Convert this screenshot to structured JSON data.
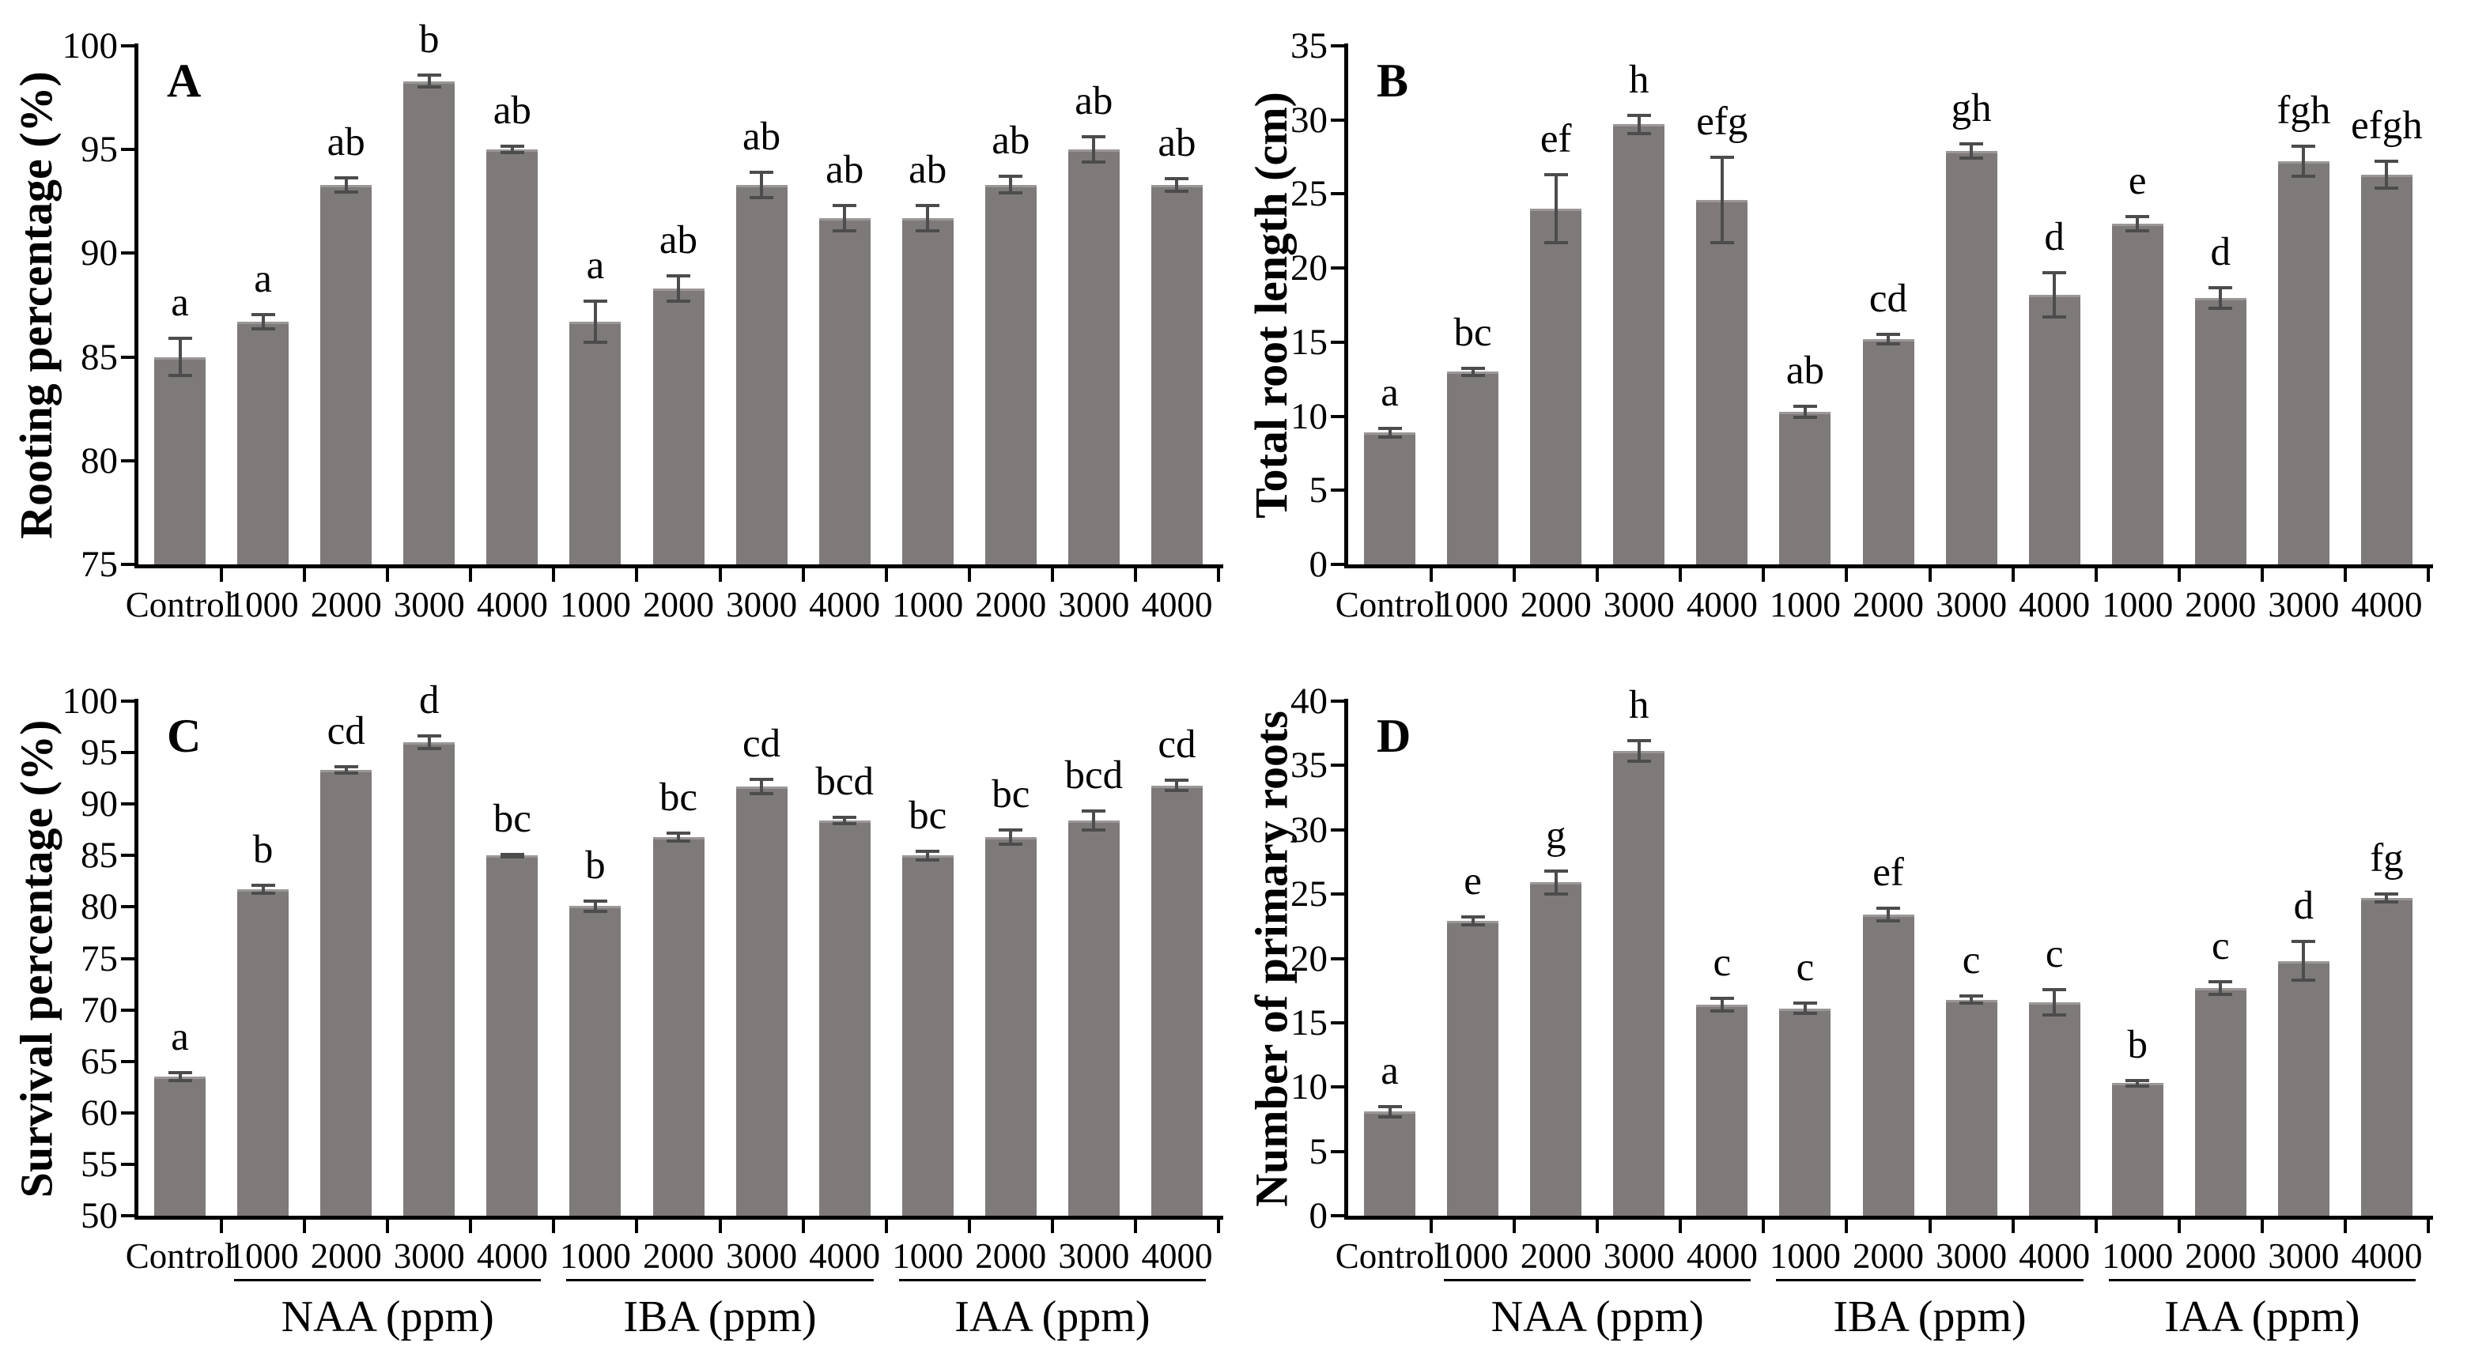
{
  "figure": {
    "background_color": "#ffffff",
    "bar_color": "#7e7a79",
    "bar_top_edge_color": "#9b9797",
    "error_bar_color": "#4d4c4c",
    "axis_color": "#000000",
    "text_color": "#000000"
  },
  "chart_data": [
    {
      "type": "bar",
      "panel_letter": "A",
      "ylabel": "Rooting percentage (%)",
      "ylim": [
        75,
        100
      ],
      "yticks": [
        75,
        80,
        85,
        90,
        95,
        100
      ],
      "grid": false,
      "legend": "none",
      "categories": [
        "Control",
        "1000",
        "2000",
        "3000",
        "4000",
        "1000",
        "2000",
        "3000",
        "4000",
        "1000",
        "2000",
        "3000",
        "4000"
      ],
      "values": [
        85.0,
        86.7,
        93.3,
        98.3,
        95.0,
        86.7,
        88.3,
        93.3,
        91.7,
        91.7,
        93.3,
        95.0,
        93.3
      ],
      "errors": [
        0.9,
        0.35,
        0.35,
        0.3,
        0.15,
        1.0,
        0.6,
        0.6,
        0.6,
        0.6,
        0.4,
        0.6,
        0.3
      ],
      "sig_letters": [
        "a",
        "a",
        "ab",
        "b",
        "ab",
        "a",
        "ab",
        "ab",
        "ab",
        "ab",
        "ab",
        "ab",
        "ab"
      ],
      "group_labels": []
    },
    {
      "type": "bar",
      "panel_letter": "B",
      "ylabel": "Total root length (cm)",
      "ylim": [
        0,
        35
      ],
      "yticks": [
        0,
        5,
        10,
        15,
        20,
        25,
        30,
        35
      ],
      "grid": false,
      "legend": "none",
      "categories": [
        "Control",
        "1000",
        "2000",
        "3000",
        "4000",
        "1000",
        "2000",
        "3000",
        "4000",
        "1000",
        "2000",
        "3000",
        "4000"
      ],
      "values": [
        8.9,
        13.0,
        24.0,
        29.7,
        24.6,
        10.3,
        15.2,
        27.9,
        18.2,
        23.0,
        18.0,
        27.2,
        26.3
      ],
      "errors": [
        0.3,
        0.25,
        2.3,
        0.6,
        2.9,
        0.35,
        0.3,
        0.5,
        1.5,
        0.5,
        0.7,
        1.0,
        0.9
      ],
      "sig_letters": [
        "a",
        "bc",
        "ef",
        "h",
        "efg",
        "ab",
        "cd",
        "gh",
        "d",
        "e",
        "d",
        "fgh",
        "efgh"
      ],
      "group_labels": []
    },
    {
      "type": "bar",
      "panel_letter": "C",
      "ylabel": "Survival percentage (%)",
      "ylim": [
        50,
        100
      ],
      "yticks": [
        50,
        55,
        60,
        65,
        70,
        75,
        80,
        85,
        90,
        95,
        100
      ],
      "grid": false,
      "legend": "none",
      "categories": [
        "Control",
        "1000",
        "2000",
        "3000",
        "4000",
        "1000",
        "2000",
        "3000",
        "4000",
        "1000",
        "2000",
        "3000",
        "4000"
      ],
      "values": [
        63.5,
        81.7,
        93.3,
        96.0,
        85.0,
        80.1,
        86.8,
        91.7,
        88.4,
        85.0,
        86.8,
        88.4,
        91.8
      ],
      "errors": [
        0.4,
        0.4,
        0.3,
        0.6,
        0.1,
        0.5,
        0.4,
        0.7,
        0.3,
        0.4,
        0.7,
        0.9,
        0.5
      ],
      "sig_letters": [
        "a",
        "b",
        "cd",
        "d",
        "bc",
        "b",
        "bc",
        "cd",
        "bcd",
        "bc",
        "bc",
        "bcd",
        "cd"
      ],
      "group_labels": [
        {
          "label": "NAA (ppm)",
          "start": 1,
          "end": 4
        },
        {
          "label": "IBA (ppm)",
          "start": 5,
          "end": 8
        },
        {
          "label": "IAA (ppm)",
          "start": 9,
          "end": 12
        }
      ]
    },
    {
      "type": "bar",
      "panel_letter": "D",
      "ylabel": "Number of primary roots",
      "ylim": [
        0,
        40
      ],
      "yticks": [
        0,
        5,
        10,
        15,
        20,
        25,
        30,
        35,
        40
      ],
      "grid": false,
      "legend": "none",
      "categories": [
        "Control",
        "1000",
        "2000",
        "3000",
        "4000",
        "1000",
        "2000",
        "3000",
        "4000",
        "1000",
        "2000",
        "3000",
        "4000"
      ],
      "values": [
        8.1,
        22.9,
        25.9,
        36.1,
        16.4,
        16.1,
        23.4,
        16.8,
        16.6,
        10.3,
        17.7,
        19.8,
        24.7
      ],
      "errors": [
        0.4,
        0.3,
        0.9,
        0.8,
        0.5,
        0.4,
        0.5,
        0.3,
        1.0,
        0.2,
        0.5,
        1.5,
        0.3
      ],
      "sig_letters": [
        "a",
        "e",
        "g",
        "h",
        "c",
        "c",
        "ef",
        "c",
        "c",
        "b",
        "c",
        "d",
        "fg"
      ],
      "group_labels": [
        {
          "label": "NAA (ppm)",
          "start": 1,
          "end": 4
        },
        {
          "label": "IBA (ppm)",
          "start": 5,
          "end": 8
        },
        {
          "label": "IAA (ppm)",
          "start": 9,
          "end": 12
        }
      ]
    }
  ]
}
